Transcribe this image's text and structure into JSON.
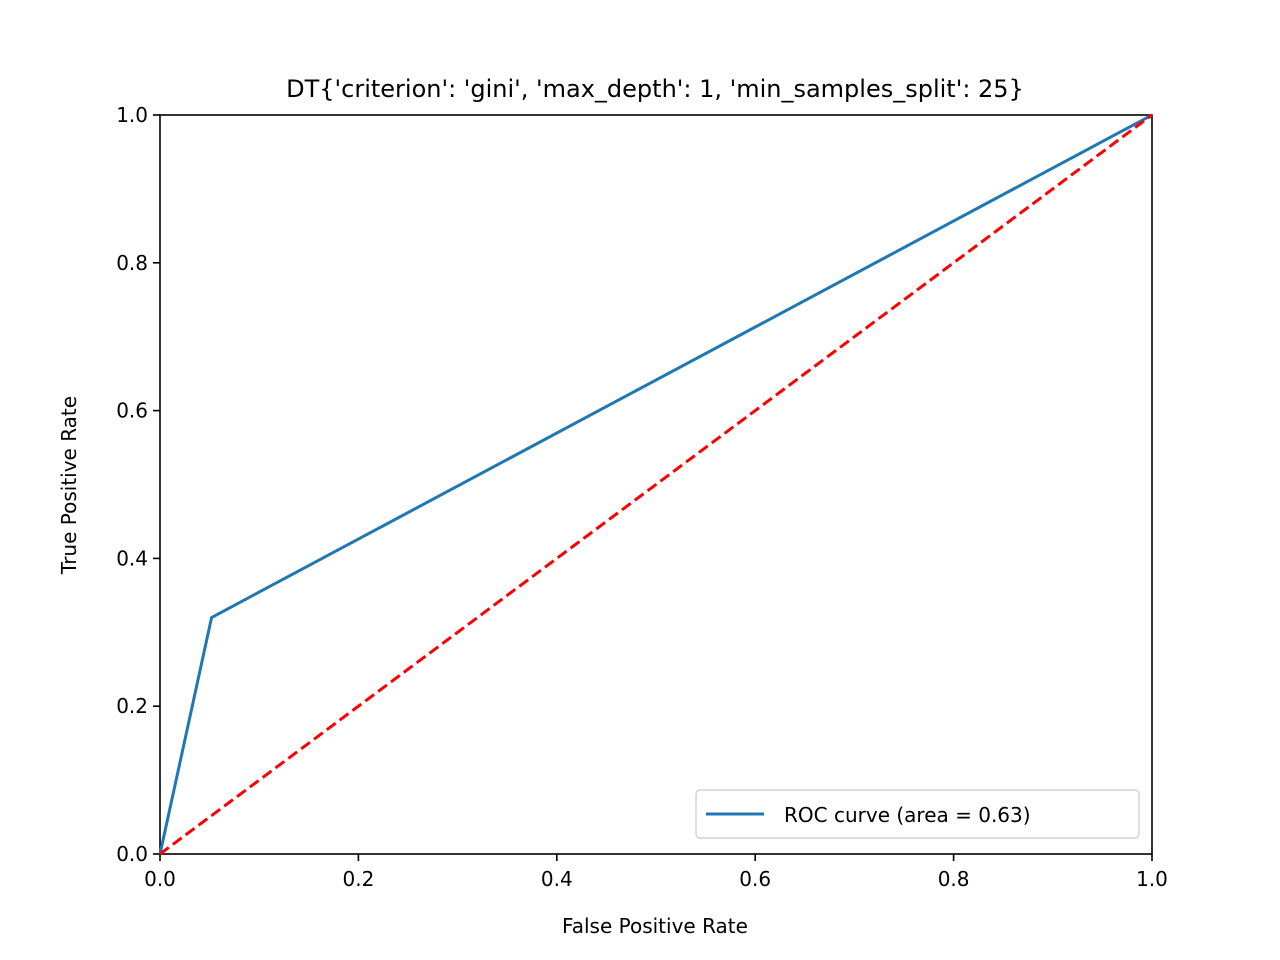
{
  "chart_data": {
    "type": "line",
    "title": "DT{'criterion': 'gini', 'max_depth': 1, 'min_samples_split': 25}",
    "xlabel": "False Positive Rate",
    "ylabel": "True Positive Rate",
    "xlim": [
      0.0,
      1.0
    ],
    "ylim": [
      0.0,
      1.0
    ],
    "xticks": [
      "0.0",
      "0.2",
      "0.4",
      "0.6",
      "0.8",
      "1.0"
    ],
    "yticks": [
      "0.0",
      "0.2",
      "0.4",
      "0.6",
      "0.8",
      "1.0"
    ],
    "grid": false,
    "legend_position": "bottom-right",
    "series": [
      {
        "name": "ROC curve (area = 0.63)",
        "color": "#1f77b4",
        "style": "solid",
        "x": [
          0.0,
          0.052,
          1.0
        ],
        "y": [
          0.0,
          0.32,
          1.0
        ]
      },
      {
        "color": "#ff0000",
        "style": "dashed",
        "x": [
          0.0,
          1.0
        ],
        "y": [
          0.0,
          1.0
        ]
      }
    ]
  }
}
